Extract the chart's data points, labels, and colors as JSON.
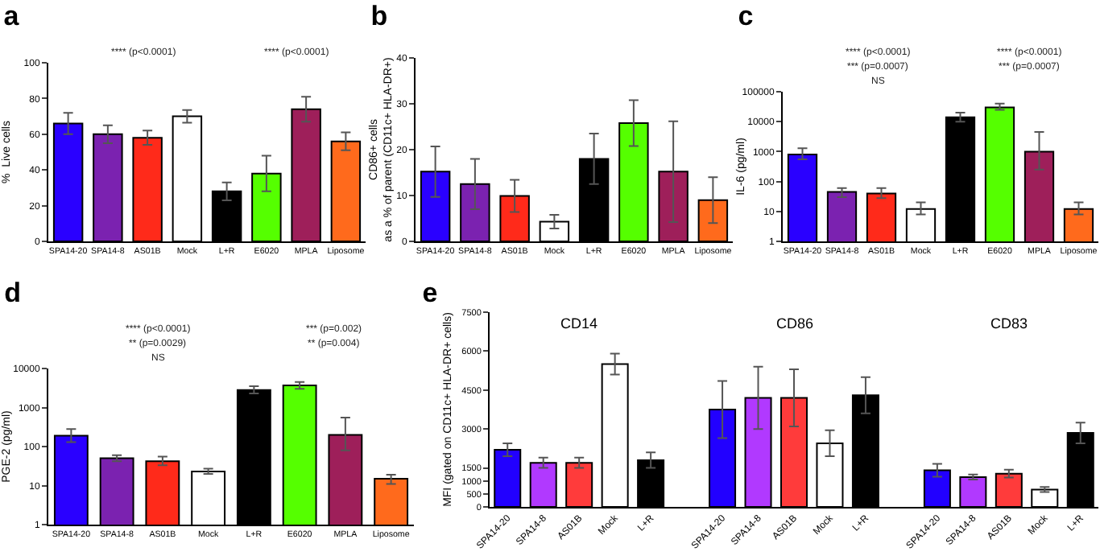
{
  "chart_data": [
    {
      "type": "bar",
      "title": "a",
      "ylabel": "%  Live cells",
      "categories": [
        "SPA14-20",
        "SPA14-8",
        "AS01B",
        "Mock",
        "L+R",
        "E6020",
        "MPLA",
        "Liposome"
      ],
      "values": [
        66,
        60,
        58,
        70,
        28,
        38,
        74,
        56
      ],
      "errors": [
        6,
        5,
        4,
        3.5,
        5,
        10,
        7,
        5
      ],
      "colors": [
        "#2a00ff",
        "#7b22b0",
        "#ff2a1a",
        "#ffffff",
        "#000000",
        "#55ff00",
        "#9e1f5a",
        "#ff6a1c"
      ],
      "ylim": [
        0,
        100
      ],
      "yticks": [
        0,
        20,
        40,
        60,
        80,
        100
      ],
      "annotations": [
        "**** (p<0.0001)",
        "**** (p<0.0001)"
      ]
    },
    {
      "type": "bar",
      "title": "b",
      "ylabel": "CD86+ cells\nas a % of parent (CD11c+ HLA-DR+)",
      "categories": [
        "SPA14-20",
        "SPA14-8",
        "AS01B",
        "Mock",
        "L+R",
        "E6020",
        "MPLA",
        "Liposome"
      ],
      "values": [
        15.2,
        12.5,
        9.9,
        4.3,
        18,
        25.8,
        15.2,
        9
      ],
      "errors": [
        5.5,
        5.5,
        3.5,
        1.5,
        5.5,
        5,
        11,
        5
      ],
      "colors": [
        "#2a00ff",
        "#7b22b0",
        "#ff2a1a",
        "#ffffff",
        "#000000",
        "#55ff00",
        "#9e1f5a",
        "#ff6a1c"
      ],
      "ylim": [
        0,
        40
      ],
      "yticks": [
        0,
        10,
        20,
        30,
        40
      ]
    },
    {
      "type": "bar",
      "title": "c",
      "ylabel": "IL-6 (pg/ml)",
      "log": "y",
      "categories": [
        "SPA14-20",
        "SPA14-8",
        "AS01B",
        "Mock",
        "L+R",
        "E6020",
        "MPLA",
        "Liposome"
      ],
      "values": [
        800,
        45,
        40,
        12,
        14000,
        30000,
        1000,
        12
      ],
      "errors": [
        [
          550,
          1300
        ],
        [
          30,
          60
        ],
        [
          28,
          60
        ],
        [
          8,
          20
        ],
        [
          10000,
          20000
        ],
        [
          25000,
          40000
        ],
        [
          250,
          4500
        ],
        [
          8,
          20
        ]
      ],
      "colors": [
        "#2a00ff",
        "#7b22b0",
        "#ff2a1a",
        "#ffffff",
        "#000000",
        "#55ff00",
        "#9e1f5a",
        "#ff6a1c"
      ],
      "ylim": [
        1,
        100000
      ],
      "yticks": [
        1,
        10,
        100,
        1000,
        10000,
        100000
      ],
      "annotations": [
        "**** (p<0.0001)",
        "**** (p<0.0001)",
        "*** (p=0.0007)",
        "*** (p=0.0007)",
        "NS"
      ]
    },
    {
      "type": "bar",
      "title": "d",
      "ylabel": "PGE-2 (pg/ml)",
      "log": "y",
      "categories": [
        "SPA14-20",
        "SPA14-8",
        "AS01B",
        "Mock",
        "L+R",
        "E6020",
        "MPLA",
        "Liposome"
      ],
      "values": [
        190,
        50,
        42,
        23,
        2800,
        3700,
        200,
        15
      ],
      "errors": [
        [
          130,
          280
        ],
        [
          42,
          60
        ],
        [
          33,
          55
        ],
        [
          20,
          27
        ],
        [
          2300,
          3500
        ],
        [
          3000,
          4500
        ],
        [
          80,
          550
        ],
        [
          11,
          19
        ]
      ],
      "colors": [
        "#2a00ff",
        "#7b22b0",
        "#ff2a1a",
        "#ffffff",
        "#000000",
        "#55ff00",
        "#9e1f5a",
        "#ff6a1c"
      ],
      "ylim": [
        1,
        10000
      ],
      "yticks": [
        1,
        10,
        100,
        1000,
        10000
      ],
      "annotations": [
        "**** (p<0.0001)",
        "*** (p=0.002)",
        "** (p=0.0029)",
        "** (p=0.004)",
        "NS"
      ]
    },
    {
      "type": "bar",
      "title": "e",
      "ylabel": "MFI (gated on CD11c+ HLA-DR+ cells)",
      "categories": [
        "SPA14-20",
        "SPA14-8",
        "AS01B",
        "Mock",
        "L+R",
        null,
        "SPA14-20",
        "SPA14-8",
        "AS01B",
        "Mock",
        "L+R",
        null,
        "SPA14-20",
        "SPA14-8",
        "AS01B",
        "Mock",
        "L+R"
      ],
      "values": [
        2200,
        1700,
        1700,
        5500,
        1800,
        null,
        3750,
        4200,
        4200,
        2450,
        4300,
        null,
        1410,
        1150,
        1280,
        670,
        2850
      ],
      "errors": [
        250,
        200,
        200,
        400,
        300,
        null,
        1100,
        1200,
        1100,
        500,
        700,
        null,
        250,
        100,
        150,
        100,
        400
      ],
      "colors": [
        "#2200ff",
        "#b139ff",
        "#ff3b3b",
        "#ffffff",
        "#000000",
        "#000000",
        "#2200ff",
        "#b139ff",
        "#ff3b3b",
        "#ffffff",
        "#000000",
        "#000000",
        "#2200ff",
        "#b139ff",
        "#ff3b3b",
        "#ffffff",
        "#000000"
      ],
      "ylim": [
        0,
        7500
      ],
      "yticks": [
        0,
        500,
        1000,
        1500,
        3000,
        4500,
        6000,
        7500
      ],
      "annotations": [
        "CD14",
        "CD86",
        "CD83"
      ]
    }
  ]
}
